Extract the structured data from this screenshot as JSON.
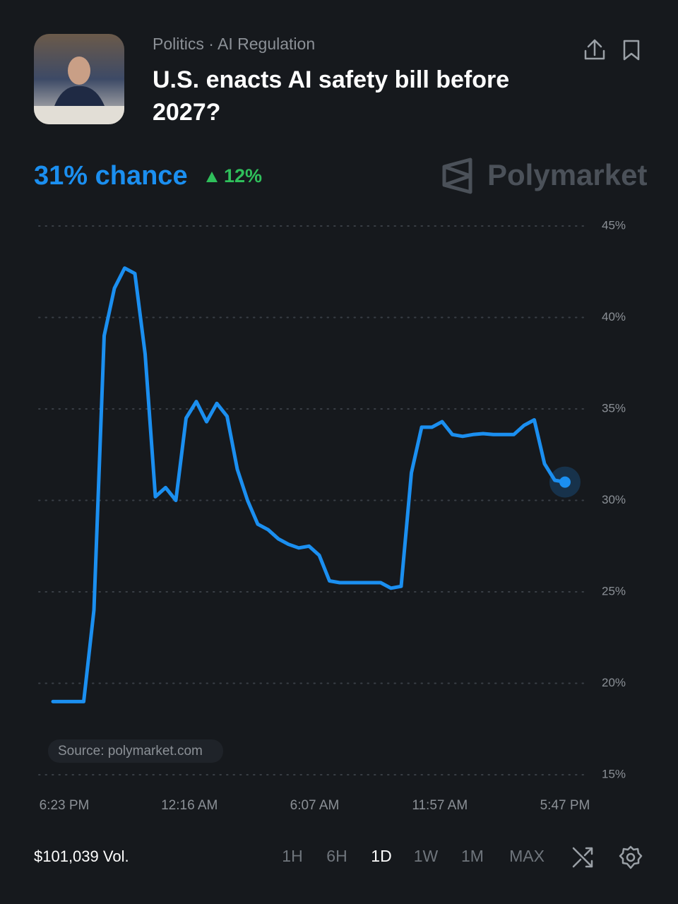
{
  "header": {
    "category": "Politics · AI Regulation",
    "title": "U.S. enacts AI safety bill before 2027?"
  },
  "brand": "Polymarket",
  "chart_data": {
    "type": "line",
    "headline": {
      "value": 31,
      "label": "31% chance"
    },
    "change": {
      "value": 12,
      "label": "12%"
    },
    "source": "Source: polymarket.com",
    "xtick_labels": [
      "6:23 PM",
      "12:16 AM",
      "6:07 AM",
      "11:57 AM",
      "5:47 PM"
    ],
    "series": [
      {
        "color": "#1b8ff0",
        "values": [
          19,
          19,
          19,
          19,
          24,
          39,
          41.6,
          42.7,
          42.4,
          38,
          30.2,
          30.7,
          30,
          34.5,
          35.4,
          34.3,
          35.3,
          34.6,
          31.7,
          30,
          28.7,
          28.4,
          27.9,
          27.6,
          27.4,
          27.5,
          27,
          25.6,
          25.5,
          25.5,
          25.5,
          25.5,
          25.5,
          25.2,
          25.3,
          31.5,
          34,
          34,
          34.3,
          33.6,
          33.5,
          33.6,
          33.65,
          33.6,
          33.6,
          33.6,
          34.1,
          34.4,
          32,
          31.1,
          31
        ]
      }
    ],
    "ylim": [
      15,
      45
    ],
    "yticks": [
      {
        "value": 15,
        "label": "15%"
      },
      {
        "value": 20,
        "label": "20%"
      },
      {
        "value": 25,
        "label": "25%"
      },
      {
        "value": 30,
        "label": "30%"
      },
      {
        "value": 35,
        "label": "35%"
      },
      {
        "value": 40,
        "label": "40%"
      },
      {
        "value": 45,
        "label": "45%"
      }
    ],
    "grid": true
  },
  "footer": {
    "volume": "$101,039 Vol.",
    "ranges": [
      "1H",
      "6H",
      "1D",
      "1W",
      "1M",
      "MAX"
    ],
    "selected_range": 2
  }
}
